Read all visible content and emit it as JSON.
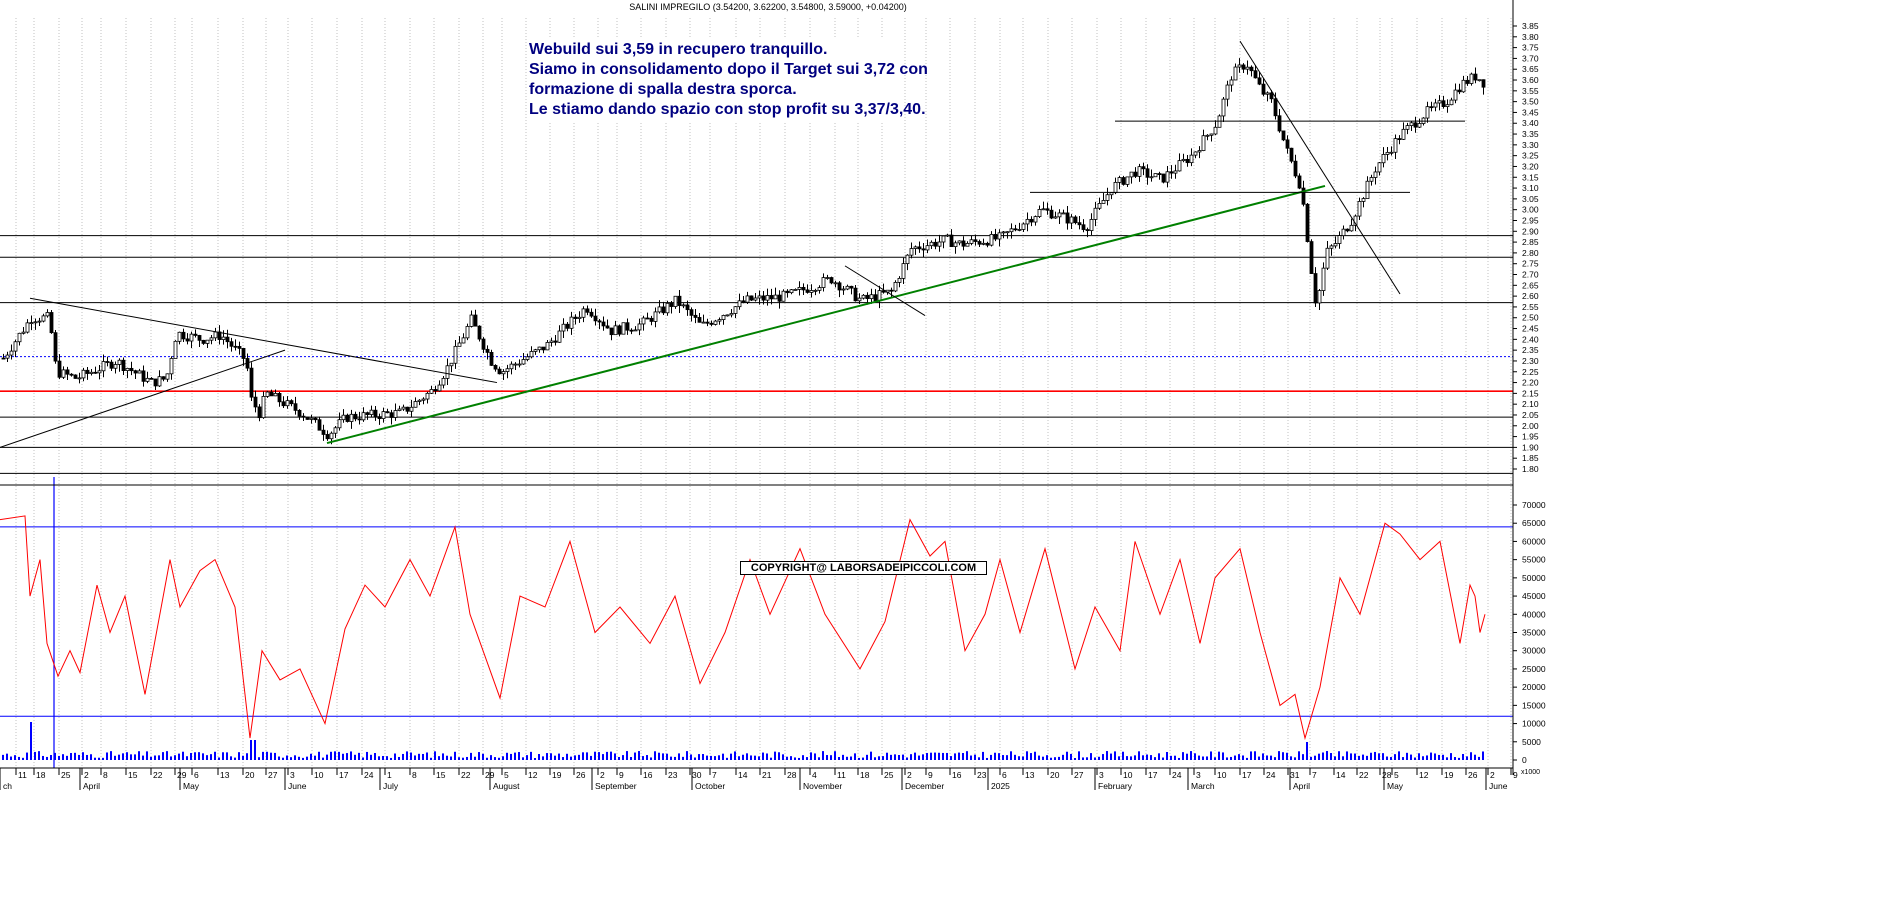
{
  "header_text": "SALINI IMPREGILO (3.54200, 3.62200, 3.54800, 3.59000, +0.04200)",
  "note_lines": [
    "Webuild sui 3,59 in recupero tranquillo.",
    "Siamo in consolidamento dopo il Target sui 3,72 con",
    "formazione di spalla destra sporca.",
    "Le stiamo dando spazio con stop profit su 3,37/3,40."
  ],
  "copyright": "COPYRIGHT@ LABORSADEIPICCOLI.COM",
  "colors": {
    "candle": "#000000",
    "trendline_green": "#008000",
    "support_red": "#ff0000",
    "dotted_blue": "#0000ff",
    "oscillator": "#ff0000",
    "volume": "#0000ff",
    "grid": "#c0c0c0"
  },
  "chart_data": [
    {
      "type": "candlestick",
      "title": "SALINI IMPREGILO",
      "ohlc_last": {
        "open": 3.542,
        "high": 3.622,
        "low": 3.548,
        "close": 3.59,
        "change": 0.042
      },
      "ylim": [
        1.75,
        3.85
      ],
      "y_ticks": [
        "3.85",
        "3.80",
        "3.75",
        "3.70",
        "3.65",
        "3.60",
        "3.55",
        "3.50",
        "3.45",
        "3.40",
        "3.35",
        "3.30",
        "3.25",
        "3.20",
        "3.15",
        "3.10",
        "3.05",
        "3.00",
        "2.95",
        "2.90",
        "2.85",
        "2.80",
        "2.75",
        "2.70",
        "2.65",
        "2.60",
        "2.55",
        "2.50",
        "2.45",
        "2.40",
        "2.35",
        "2.30",
        "2.25",
        "2.20",
        "2.15",
        "2.10",
        "2.05",
        "2.00",
        "1.95",
        "1.90",
        "1.85",
        "1.80"
      ],
      "horizontal_levels": [
        {
          "y": 2.88,
          "color": "black"
        },
        {
          "y": 2.78,
          "color": "black"
        },
        {
          "y": 2.57,
          "color": "black"
        },
        {
          "y": 2.32,
          "color": "blue",
          "style": "dotted"
        },
        {
          "y": 2.16,
          "color": "red"
        },
        {
          "y": 2.04,
          "color": "black"
        },
        {
          "y": 1.9,
          "color": "black"
        },
        {
          "y": 1.78,
          "color": "black"
        }
      ],
      "trendlines": [
        {
          "x": [
            0,
            285
          ],
          "y": [
            1.9,
            2.35
          ],
          "color": "black"
        },
        {
          "x": [
            30,
            497
          ],
          "y": [
            2.59,
            2.2
          ],
          "color": "black"
        },
        {
          "x": [
            327,
            1325
          ],
          "y": [
            1.92,
            3.11
          ],
          "color": "green"
        },
        {
          "x": [
            845,
            925
          ],
          "y": [
            2.74,
            2.51
          ],
          "color": "black"
        },
        {
          "x": [
            1240,
            1400
          ],
          "y": [
            3.78,
            2.61
          ],
          "color": "black"
        },
        {
          "x": [
            1030,
            1410
          ],
          "y": [
            3.08,
            3.08
          ],
          "color": "black"
        },
        {
          "x": [
            1115,
            1465
          ],
          "y": [
            3.41,
            3.41
          ],
          "color": "black"
        }
      ],
      "price_path": [
        [
          0,
          2.3
        ],
        [
          30,
          2.5
        ],
        [
          48,
          2.5
        ],
        [
          55,
          2.25
        ],
        [
          75,
          2.22
        ],
        [
          115,
          2.3
        ],
        [
          150,
          2.2
        ],
        [
          165,
          2.22
        ],
        [
          175,
          2.43
        ],
        [
          200,
          2.4
        ],
        [
          220,
          2.42
        ],
        [
          245,
          2.3
        ],
        [
          250,
          2.12
        ],
        [
          258,
          2.06
        ],
        [
          265,
          2.15
        ],
        [
          300,
          2.06
        ],
        [
          327,
          1.96
        ],
        [
          345,
          2.04
        ],
        [
          400,
          2.06
        ],
        [
          430,
          2.16
        ],
        [
          445,
          2.26
        ],
        [
          470,
          2.49
        ],
        [
          490,
          2.3
        ],
        [
          500,
          2.25
        ],
        [
          545,
          2.37
        ],
        [
          585,
          2.55
        ],
        [
          610,
          2.44
        ],
        [
          640,
          2.47
        ],
        [
          675,
          2.58
        ],
        [
          700,
          2.46
        ],
        [
          745,
          2.58
        ],
        [
          785,
          2.6
        ],
        [
          830,
          2.68
        ],
        [
          860,
          2.58
        ],
        [
          890,
          2.62
        ],
        [
          910,
          2.82
        ],
        [
          945,
          2.86
        ],
        [
          960,
          2.84
        ],
        [
          1000,
          2.87
        ],
        [
          1040,
          3.0
        ],
        [
          1060,
          2.97
        ],
        [
          1085,
          2.92
        ],
        [
          1110,
          3.1
        ],
        [
          1135,
          3.18
        ],
        [
          1160,
          3.14
        ],
        [
          1190,
          3.25
        ],
        [
          1215,
          3.4
        ],
        [
          1230,
          3.62
        ],
        [
          1245,
          3.68
        ],
        [
          1260,
          3.55
        ],
        [
          1270,
          3.5
        ],
        [
          1285,
          3.28
        ],
        [
          1300,
          3.1
        ],
        [
          1310,
          2.72
        ],
        [
          1315,
          2.55
        ],
        [
          1325,
          2.8
        ],
        [
          1335,
          2.85
        ],
        [
          1350,
          2.95
        ],
        [
          1375,
          3.2
        ],
        [
          1400,
          3.35
        ],
        [
          1425,
          3.45
        ],
        [
          1445,
          3.5
        ],
        [
          1460,
          3.58
        ],
        [
          1475,
          3.62
        ],
        [
          1482,
          3.59
        ]
      ]
    },
    {
      "type": "line",
      "title": "",
      "ylim": [
        0,
        70000
      ],
      "y_ticks": [
        "70000",
        "65000",
        "60000",
        "55000",
        "50000",
        "45000",
        "40000",
        "35000",
        "30000",
        "25000",
        "20000",
        "15000",
        "10000",
        "5000",
        "0"
      ],
      "horizontal_levels": [
        {
          "y": 64000,
          "color": "blue"
        },
        {
          "y": 12000,
          "color": "blue"
        }
      ],
      "unit_label": "x1000",
      "series": [
        {
          "values": [
            [
              0,
              66000
            ],
            [
              25,
              67000
            ],
            [
              30,
              45000
            ],
            [
              40,
              55000
            ],
            [
              47,
              32000
            ],
            [
              58,
              23000
            ],
            [
              70,
              30000
            ],
            [
              80,
              24000
            ],
            [
              97,
              48000
            ],
            [
              110,
              35000
            ],
            [
              125,
              45000
            ],
            [
              145,
              18000
            ],
            [
              170,
              55000
            ],
            [
              180,
              42000
            ],
            [
              200,
              52000
            ],
            [
              215,
              55000
            ],
            [
              235,
              42000
            ],
            [
              250,
              6000
            ],
            [
              262,
              30000
            ],
            [
              280,
              22000
            ],
            [
              300,
              25000
            ],
            [
              325,
              10000
            ],
            [
              345,
              36000
            ],
            [
              365,
              48000
            ],
            [
              385,
              42000
            ],
            [
              410,
              55000
            ],
            [
              430,
              45000
            ],
            [
              455,
              64000
            ],
            [
              470,
              40000
            ],
            [
              500,
              17000
            ],
            [
              520,
              45000
            ],
            [
              545,
              42000
            ],
            [
              570,
              60000
            ],
            [
              595,
              35000
            ],
            [
              620,
              42000
            ],
            [
              650,
              32000
            ],
            [
              675,
              45000
            ],
            [
              700,
              21000
            ],
            [
              725,
              35000
            ],
            [
              750,
              55000
            ],
            [
              770,
              40000
            ],
            [
              800,
              58000
            ],
            [
              825,
              40000
            ],
            [
              860,
              25000
            ],
            [
              885,
              38000
            ],
            [
              910,
              66000
            ],
            [
              930,
              56000
            ],
            [
              945,
              60000
            ],
            [
              965,
              30000
            ],
            [
              985,
              40000
            ],
            [
              1000,
              55000
            ],
            [
              1020,
              35000
            ],
            [
              1045,
              58000
            ],
            [
              1075,
              25000
            ],
            [
              1095,
              42000
            ],
            [
              1120,
              30000
            ],
            [
              1135,
              60000
            ],
            [
              1160,
              40000
            ],
            [
              1180,
              55000
            ],
            [
              1200,
              32000
            ],
            [
              1215,
              50000
            ],
            [
              1240,
              58000
            ],
            [
              1260,
              35000
            ],
            [
              1280,
              15000
            ],
            [
              1295,
              18000
            ],
            [
              1305,
              6000
            ],
            [
              1320,
              20000
            ],
            [
              1340,
              50000
            ],
            [
              1360,
              40000
            ],
            [
              1385,
              65000
            ],
            [
              1400,
              62000
            ],
            [
              1420,
              55000
            ],
            [
              1440,
              60000
            ],
            [
              1460,
              32000
            ],
            [
              1470,
              48000
            ],
            [
              1475,
              45000
            ],
            [
              1480,
              35000
            ],
            [
              1485,
              40000
            ]
          ]
        }
      ]
    }
  ],
  "x_axis": {
    "day_ticks": [
      {
        "x": 16,
        "label": "11"
      },
      {
        "x": 34,
        "label": "18"
      },
      {
        "x": 59,
        "label": "25"
      },
      {
        "x": 82,
        "label": "2"
      },
      {
        "x": 101,
        "label": "8"
      },
      {
        "x": 126,
        "label": "15"
      },
      {
        "x": 151,
        "label": "22"
      },
      {
        "x": 175,
        "label": "29"
      },
      {
        "x": 192,
        "label": "6"
      },
      {
        "x": 218,
        "label": "13"
      },
      {
        "x": 243,
        "label": "20"
      },
      {
        "x": 266,
        "label": "27"
      },
      {
        "x": 288,
        "label": "3"
      },
      {
        "x": 312,
        "label": "10"
      },
      {
        "x": 337,
        "label": "17"
      },
      {
        "x": 362,
        "label": "24"
      },
      {
        "x": 385,
        "label": "1"
      },
      {
        "x": 410,
        "label": "8"
      },
      {
        "x": 434,
        "label": "15"
      },
      {
        "x": 459,
        "label": "22"
      },
      {
        "x": 483,
        "label": "29"
      },
      {
        "x": 502,
        "label": "5"
      },
      {
        "x": 526,
        "label": "12"
      },
      {
        "x": 550,
        "label": "19"
      },
      {
        "x": 574,
        "label": "26"
      },
      {
        "x": 598,
        "label": "2"
      },
      {
        "x": 617,
        "label": "9"
      },
      {
        "x": 641,
        "label": "16"
      },
      {
        "x": 666,
        "label": "23"
      },
      {
        "x": 690,
        "label": "30"
      },
      {
        "x": 710,
        "label": "7"
      },
      {
        "x": 736,
        "label": "14"
      },
      {
        "x": 760,
        "label": "21"
      },
      {
        "x": 785,
        "label": "28"
      },
      {
        "x": 810,
        "label": "4"
      },
      {
        "x": 835,
        "label": "11"
      },
      {
        "x": 858,
        "label": "18"
      },
      {
        "x": 882,
        "label": "25"
      },
      {
        "x": 905,
        "label": "2"
      },
      {
        "x": 926,
        "label": "9"
      },
      {
        "x": 950,
        "label": "16"
      },
      {
        "x": 975,
        "label": "23"
      },
      {
        "x": 1000,
        "label": "6"
      },
      {
        "x": 1023,
        "label": "13"
      },
      {
        "x": 1048,
        "label": "20"
      },
      {
        "x": 1072,
        "label": "27"
      },
      {
        "x": 1097,
        "label": "3"
      },
      {
        "x": 1121,
        "label": "10"
      },
      {
        "x": 1146,
        "label": "17"
      },
      {
        "x": 1170,
        "label": "24"
      },
      {
        "x": 1194,
        "label": "3"
      },
      {
        "x": 1215,
        "label": "10"
      },
      {
        "x": 1240,
        "label": "17"
      },
      {
        "x": 1264,
        "label": "24"
      },
      {
        "x": 1288,
        "label": "31"
      },
      {
        "x": 1310,
        "label": "7"
      },
      {
        "x": 1334,
        "label": "14"
      },
      {
        "x": 1357,
        "label": "22"
      },
      {
        "x": 1380,
        "label": "28"
      },
      {
        "x": 1392,
        "label": "5"
      },
      {
        "x": 1417,
        "label": "12"
      },
      {
        "x": 1442,
        "label": "19"
      },
      {
        "x": 1466,
        "label": "26"
      },
      {
        "x": 1488,
        "label": "2"
      },
      {
        "x": 1511,
        "label": "9"
      }
    ],
    "month_labels": [
      {
        "x": 0,
        "label": "ch"
      },
      {
        "x": 80,
        "label": "April"
      },
      {
        "x": 180,
        "label": "May"
      },
      {
        "x": 285,
        "label": "June"
      },
      {
        "x": 380,
        "label": "July"
      },
      {
        "x": 490,
        "label": "August"
      },
      {
        "x": 592,
        "label": "September"
      },
      {
        "x": 692,
        "label": "October"
      },
      {
        "x": 800,
        "label": "November"
      },
      {
        "x": 902,
        "label": "December"
      },
      {
        "x": 988,
        "label": "2025"
      },
      {
        "x": 1095,
        "label": "February"
      },
      {
        "x": 1188,
        "label": "March"
      },
      {
        "x": 1290,
        "label": "April"
      },
      {
        "x": 1384,
        "label": "May"
      },
      {
        "x": 1486,
        "label": "June"
      }
    ]
  }
}
